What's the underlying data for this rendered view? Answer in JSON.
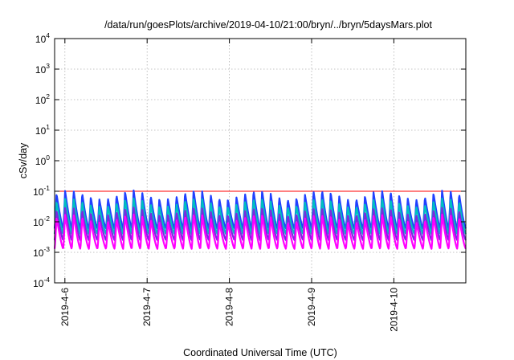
{
  "chart_data": {
    "type": "line",
    "title": "/data/run/goesPlots/archive/2019-04-10/21:00/bryn/../bryn/5daysMars.plot",
    "xlabel": "Coordinated Universal Time (UTC)",
    "ylabel": "cSv/day",
    "yscale": "log",
    "ylim": [
      0.0001,
      10000
    ],
    "y_ticks": [
      {
        "base": "10",
        "exp": "-4",
        "value": 0.0001
      },
      {
        "base": "10",
        "exp": "-3",
        "value": 0.001
      },
      {
        "base": "10",
        "exp": "-2",
        "value": 0.01
      },
      {
        "base": "10",
        "exp": "-1",
        "value": 0.1
      },
      {
        "base": "10",
        "exp": "0",
        "value": 1
      },
      {
        "base": "10",
        "exp": "1",
        "value": 10
      },
      {
        "base": "10",
        "exp": "2",
        "value": 100
      },
      {
        "base": "10",
        "exp": "3",
        "value": 1000
      },
      {
        "base": "10",
        "exp": "4",
        "value": 10000
      }
    ],
    "xlim": [
      "2019-04-05 21:00",
      "2019-04-10 21:00"
    ],
    "x_ticks": [
      "2019-4-6",
      "2019-4-7",
      "2019-4-8",
      "2019-4-9",
      "2019-4-10"
    ],
    "grid": true,
    "oscillation_period_hours": 2.5,
    "series": [
      {
        "color": "#ff0000",
        "peak": 0.1,
        "trough": 0.1
      },
      {
        "color": "#2040ff",
        "peak": 0.11,
        "trough": 0.006
      },
      {
        "color": "#00c0c0",
        "peak": 0.06,
        "trough": 0.004
      },
      {
        "color": "#7a2ae0",
        "peak": 0.03,
        "trough": 0.0025
      },
      {
        "color": "#ff00ff",
        "peak": 0.018,
        "trough": 0.0013
      }
    ]
  }
}
